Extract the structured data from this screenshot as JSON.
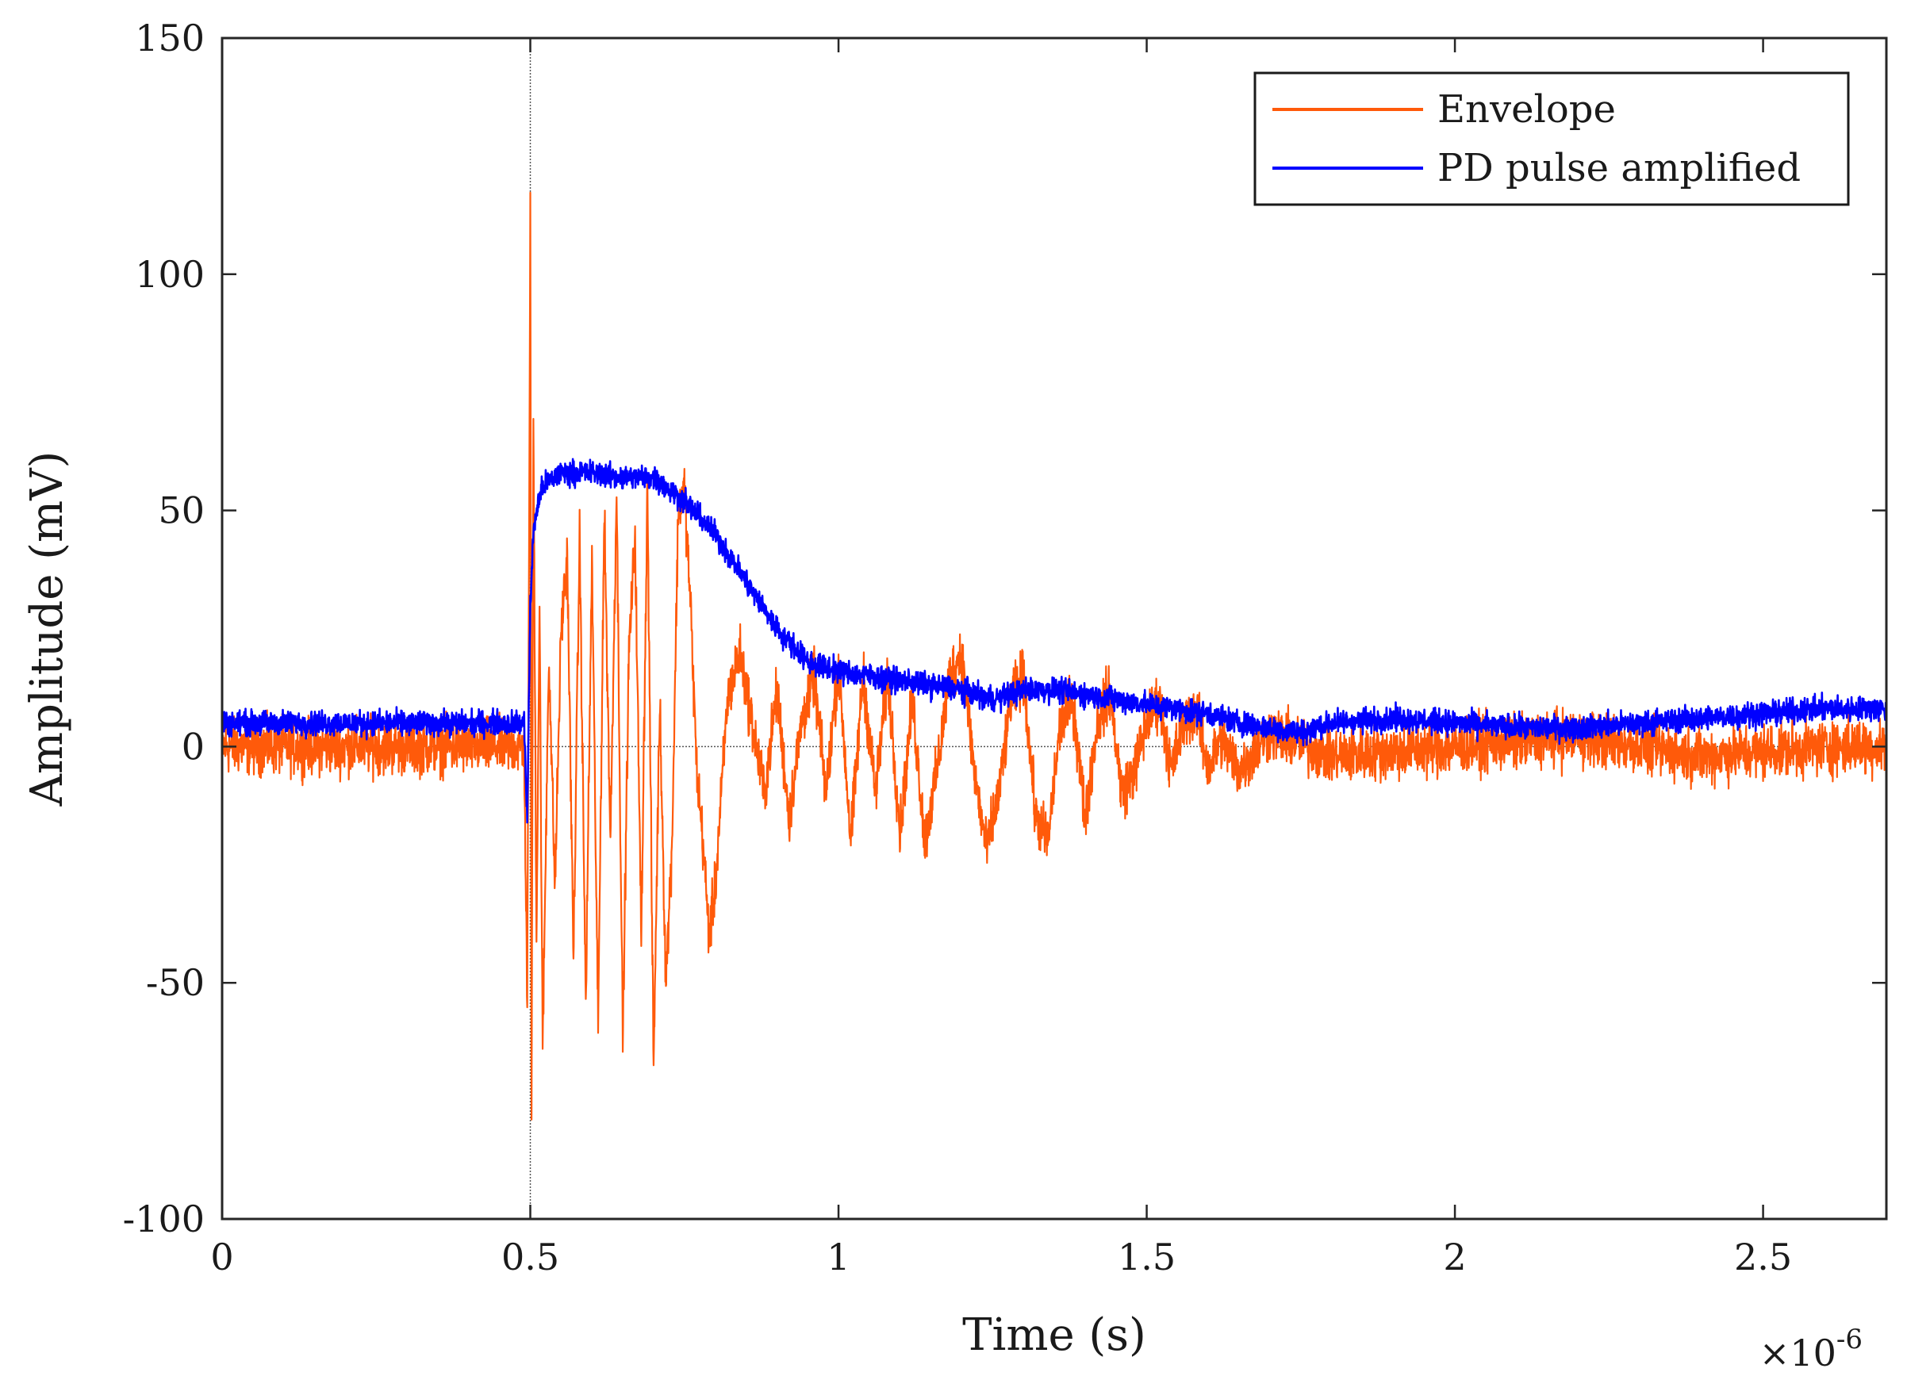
{
  "chart_data": {
    "type": "line",
    "title": "",
    "xlabel": "Time (s)",
    "ylabel": "Amplitude (mV)",
    "x_exponent_label": "×10",
    "x_exponent_power": "-6",
    "xlim": [
      0,
      2.7
    ],
    "ylim": [
      -100,
      150
    ],
    "x_ticks": [
      0,
      0.5,
      1,
      1.5,
      2,
      2.5
    ],
    "x_tick_labels": [
      "0",
      "0.5",
      "1",
      "1.5",
      "2",
      "2.5"
    ],
    "y_ticks": [
      -100,
      -50,
      0,
      50,
      100,
      150
    ],
    "y_tick_labels": [
      "-100",
      "-50",
      "0",
      "50",
      "100",
      "150"
    ],
    "legend_position": "top-right",
    "reference_lines": {
      "vertical_x": 0.5,
      "horizontal_y": 0
    },
    "series": [
      {
        "name": "Envelope",
        "color": "#ff5a0a",
        "noise": 5,
        "x": [
          0,
          0.49,
          0.495,
          0.498,
          0.5,
          0.502,
          0.505,
          0.51,
          0.515,
          0.52,
          0.53,
          0.54,
          0.55,
          0.56,
          0.57,
          0.58,
          0.59,
          0.6,
          0.61,
          0.62,
          0.63,
          0.64,
          0.65,
          0.66,
          0.67,
          0.68,
          0.69,
          0.7,
          0.71,
          0.72,
          0.73,
          0.74,
          0.75,
          0.76,
          0.77,
          0.78,
          0.79,
          0.8,
          0.82,
          0.84,
          0.86,
          0.88,
          0.9,
          0.92,
          0.94,
          0.96,
          0.98,
          1.0,
          1.02,
          1.04,
          1.06,
          1.08,
          1.1,
          1.12,
          1.14,
          1.16,
          1.18,
          1.2,
          1.22,
          1.24,
          1.26,
          1.28,
          1.3,
          1.32,
          1.34,
          1.36,
          1.38,
          1.4,
          1.42,
          1.44,
          1.46,
          1.48,
          1.5,
          1.52,
          1.54,
          1.56,
          1.58,
          1.6,
          1.62,
          1.65,
          1.7,
          1.8,
          2.0,
          2.2,
          2.4,
          2.6,
          2.7
        ],
        "y": [
          0,
          0,
          -55,
          40,
          120,
          -80,
          70,
          -40,
          30,
          -65,
          20,
          -30,
          25,
          40,
          -45,
          45,
          -55,
          40,
          -60,
          50,
          -20,
          55,
          -62,
          20,
          45,
          -40,
          55,
          -68,
          10,
          -50,
          -20,
          50,
          55,
          30,
          -5,
          -20,
          -40,
          -30,
          10,
          20,
          5,
          -10,
          12,
          -15,
          5,
          15,
          -10,
          18,
          -20,
          15,
          -10,
          15,
          -18,
          10,
          -20,
          -5,
          15,
          20,
          -5,
          -22,
          -10,
          10,
          15,
          -15,
          -20,
          5,
          10,
          -15,
          5,
          12,
          -10,
          -5,
          5,
          10,
          -5,
          5,
          8,
          -5,
          2,
          -5,
          3,
          -2,
          0,
          2,
          -2,
          0,
          0
        ]
      },
      {
        "name": "PD pulse amplified",
        "color": "#0000ff",
        "noise": 2.2,
        "x": [
          0,
          0.49,
          0.495,
          0.5,
          0.505,
          0.51,
          0.52,
          0.55,
          0.6,
          0.65,
          0.7,
          0.75,
          0.8,
          0.85,
          0.9,
          0.95,
          1.0,
          1.05,
          1.1,
          1.15,
          1.2,
          1.25,
          1.3,
          1.35,
          1.4,
          1.45,
          1.5,
          1.55,
          1.6,
          1.65,
          1.7,
          1.75,
          1.8,
          1.9,
          2.0,
          2.1,
          2.2,
          2.3,
          2.4,
          2.5,
          2.6,
          2.7
        ],
        "y": [
          5,
          5,
          -15,
          30,
          45,
          50,
          55,
          58,
          58,
          57,
          57,
          52,
          45,
          35,
          25,
          18,
          16,
          15,
          14,
          13,
          12,
          10,
          12,
          12,
          11,
          10,
          9,
          8,
          7,
          5,
          4,
          3,
          5,
          6,
          5,
          4,
          4,
          5,
          6,
          7,
          8,
          8
        ]
      }
    ]
  }
}
